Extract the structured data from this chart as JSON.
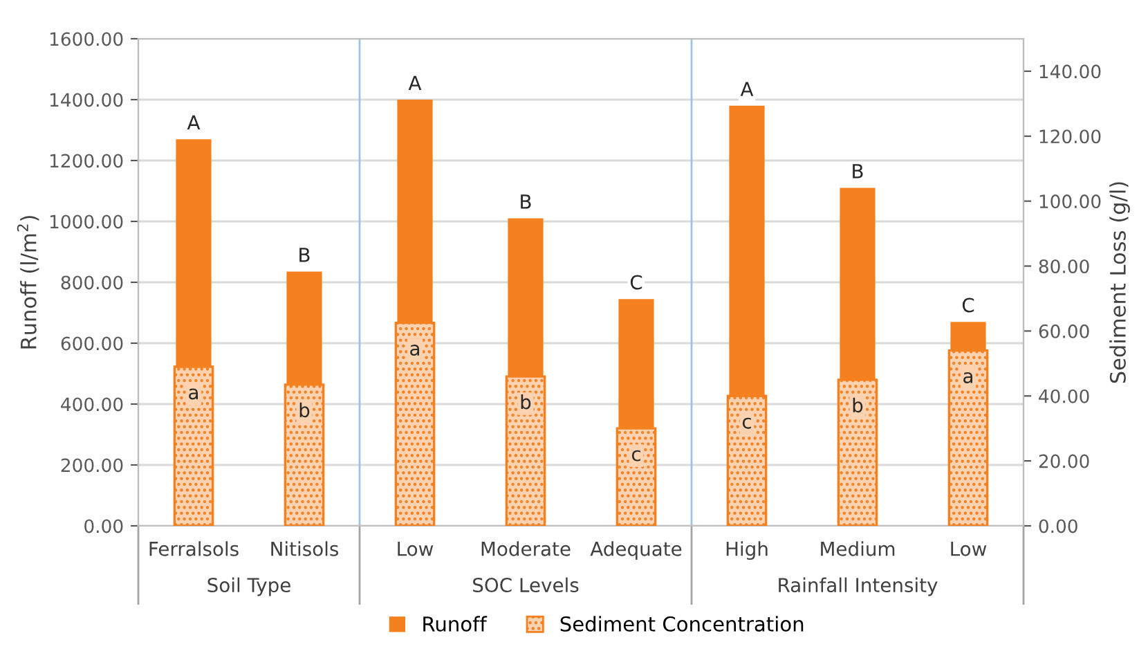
{
  "chart_data": {
    "type": "bar",
    "categories": [
      "Ferralsols",
      "Nitisols",
      "Low",
      "Moderate",
      "Adequate",
      "High",
      "Medium",
      "Low"
    ],
    "series": [
      {
        "name": "Runoff",
        "color": "#f5801f",
        "values": [
          1270,
          835,
          1400,
          1010,
          745,
          1380,
          1110,
          670
        ],
        "value_labels": [
          "A",
          "B",
          "A",
          "B",
          "C",
          "A",
          "B",
          "C"
        ]
      },
      {
        "name": "Sediment Concentration",
        "color": "#f5801f",
        "axis": "y2",
        "values": [
          49,
          43.5,
          62.5,
          46,
          30,
          40,
          45,
          54
        ],
        "value_labels": [
          "a",
          "b",
          "a",
          "b",
          "c",
          "c",
          "b",
          "a"
        ]
      }
    ],
    "ylabel": "Runoff (l/m$^{2}$)",
    "y2label": "Sediment Loss (g/l)",
    "ylim": [
      0,
      1600
    ],
    "yticks": [
      {
        "value": 0,
        "label": "0.00"
      },
      {
        "value": 200,
        "label": "200.00"
      },
      {
        "value": 400,
        "label": "400.00"
      },
      {
        "value": 600,
        "label": "600.00"
      },
      {
        "value": 800,
        "label": "800.00"
      },
      {
        "value": 1000,
        "label": "1000.00"
      },
      {
        "value": 1200,
        "label": "1200.00"
      },
      {
        "value": 1400,
        "label": "1400.00"
      },
      {
        "value": 1600,
        "label": "1600.00"
      }
    ],
    "y2lim": [
      0,
      150
    ],
    "y2ticks": [
      {
        "value": 0,
        "label": "0.00"
      },
      {
        "value": 20,
        "label": "20.00"
      },
      {
        "value": 40,
        "label": "40.00"
      },
      {
        "value": 60,
        "label": "60.00"
      },
      {
        "value": 80,
        "label": "80.00"
      },
      {
        "value": 100,
        "label": "100.00"
      },
      {
        "value": 120,
        "label": "120.00"
      },
      {
        "value": 140,
        "label": "140.00"
      }
    ],
    "annotations": [
      "Soil Type",
      "SOC Levels",
      "Rainfall Intensity"
    ],
    "grid": "y",
    "legend": "bottom"
  }
}
